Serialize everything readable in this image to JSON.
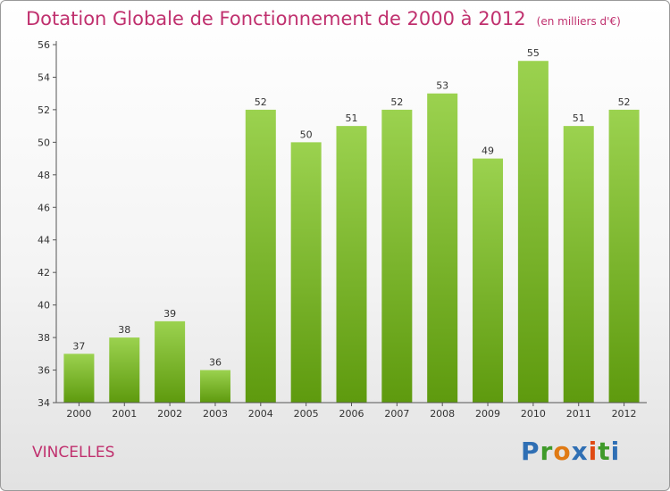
{
  "header": {
    "title": "Dotation Globale de Fonctionnement de 2000 à 2012",
    "subtitle": "(en milliers d'€)"
  },
  "commune": "VINCELLES",
  "logo": {
    "letters": [
      "P",
      "r",
      "o",
      "x",
      "i",
      "t",
      "i"
    ],
    "colors": [
      "#2f6fb4",
      "#3f9a2a",
      "#e07a14",
      "#2f6fb4",
      "#e04a14",
      "#3f9a2a",
      "#2f6fb4"
    ]
  },
  "chart_data": {
    "type": "bar",
    "title": "Dotation Globale de Fonctionnement de 2000 à 2012",
    "subtitle": "(en milliers d'€)",
    "categories": [
      "2000",
      "2001",
      "2002",
      "2003",
      "2004",
      "2005",
      "2006",
      "2007",
      "2008",
      "2009",
      "2010",
      "2011",
      "2012"
    ],
    "values": [
      37,
      38,
      39,
      36,
      52,
      50,
      51,
      52,
      53,
      49,
      55,
      51,
      52
    ],
    "ylim": [
      34,
      56
    ],
    "yticks": [
      34,
      36,
      38,
      40,
      42,
      44,
      46,
      48,
      50,
      52,
      54,
      56
    ],
    "grid": false,
    "colors": {
      "bar_top": "#9bd24f",
      "bar_bottom": "#5e9a0e",
      "text": "#c0306e"
    }
  }
}
